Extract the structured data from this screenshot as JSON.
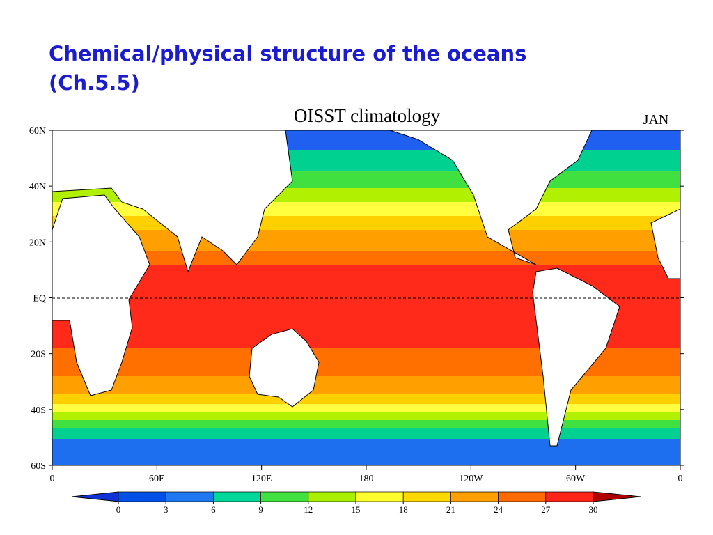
{
  "slide": {
    "title_line1": "Chemical/physical structure of the oceans",
    "title_line2": "(Ch.5.5)"
  },
  "map": {
    "title": "OISST climatology",
    "month": "JAN",
    "lat_labels": [
      "60N",
      "40N",
      "20N",
      "EQ",
      "20S",
      "40S",
      "60S"
    ],
    "lon_labels": [
      "0",
      "60E",
      "120E",
      "180",
      "120W",
      "60W",
      "0"
    ]
  },
  "colorbar": {
    "ticks": [
      0,
      3,
      6,
      9,
      12,
      15,
      18,
      21,
      24,
      27,
      30
    ],
    "under_color": "#1030d8",
    "colors": [
      "#0050e8",
      "#2078f0",
      "#00d89a",
      "#40e040",
      "#a8f000",
      "#ffff30",
      "#ffd800",
      "#ffa000",
      "#ff6a00",
      "#ff2418"
    ],
    "over_color": "#b00000"
  }
}
